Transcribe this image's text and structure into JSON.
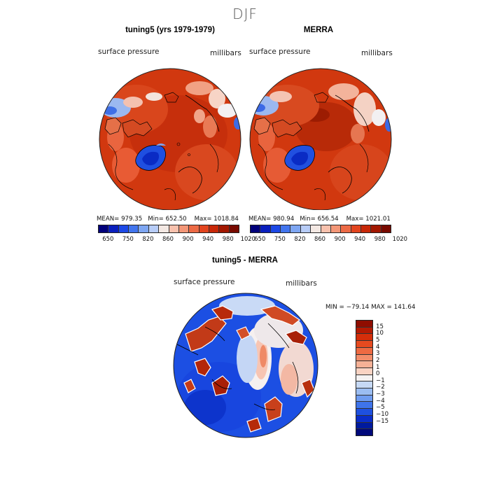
{
  "figure": {
    "title": "DJF"
  },
  "panels": {
    "left": {
      "title": "tuning5 (yrs 1979-1979)",
      "variable": "surface pressure",
      "units": "millibars",
      "stats": {
        "mean_label": "MEAN=",
        "mean": "979.35",
        "min_label": "Min=",
        "min": "652.50",
        "max_label": "Max=",
        "max": "1018.84"
      }
    },
    "right": {
      "title": "MERRA",
      "variable": "surface pressure",
      "units": "millibars",
      "stats": {
        "mean_label": "MEAN=",
        "mean": "980.94",
        "min_label": "Min=",
        "min": "656.54",
        "max_label": "Max=",
        "max": "1021.01"
      }
    },
    "diff": {
      "title": "tuning5 - MERRA",
      "variable": "surface pressure",
      "units": "millibars",
      "stats": "MIN = −79.14 MAX = 141.64"
    }
  },
  "colorbars": {
    "pressure": {
      "ticks": [
        "650",
        "750",
        "820",
        "860",
        "900",
        "940",
        "980",
        "1020"
      ],
      "colors": [
        "#00007a",
        "#0a1fbd",
        "#1c48e6",
        "#4275ee",
        "#7ea6f2",
        "#b7ccf7",
        "#f3e8e3",
        "#f8c1ad",
        "#f39677",
        "#ec6a45",
        "#e2441e",
        "#c82808",
        "#a21700",
        "#780a00"
      ]
    },
    "difference": {
      "ticks": [
        "15",
        "10",
        "5",
        "4",
        "3",
        "2",
        "1",
        "0",
        "−1",
        "−2",
        "−3",
        "−4",
        "−5",
        "−10",
        "−15"
      ],
      "colors": [
        "#8f0d00",
        "#b41a03",
        "#d52e0a",
        "#e64a1f",
        "#ee6a42",
        "#f38d6a",
        "#f6b196",
        "#f9d3c3",
        "#f4f2f2",
        "#c6d9f5",
        "#9bbdf2",
        "#6f9cf0",
        "#3f74ea",
        "#1e50e0",
        "#0a2dc9",
        "#001a9e",
        "#00087a"
      ]
    }
  }
}
